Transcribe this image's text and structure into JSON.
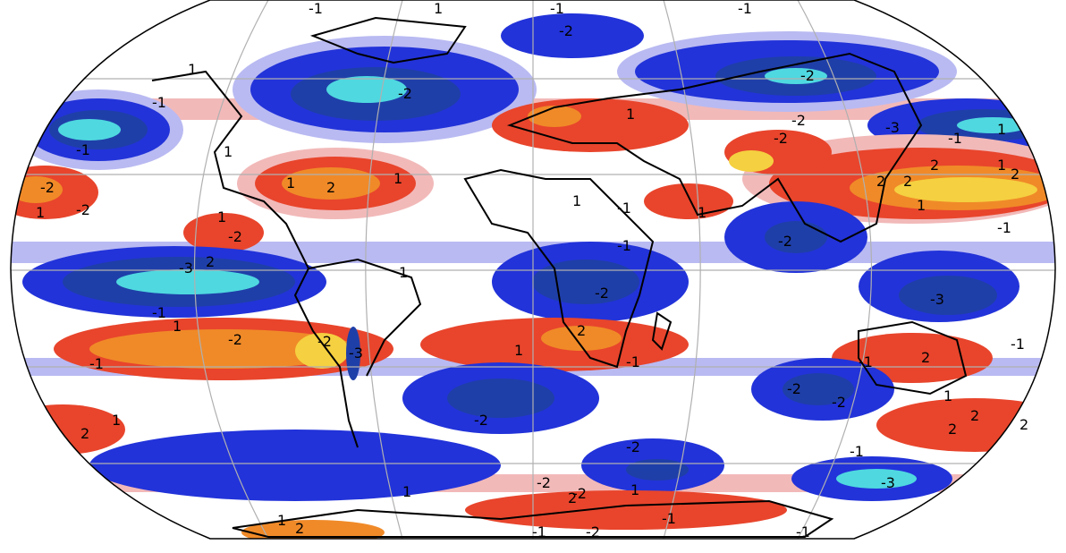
{
  "map": {
    "projection": "robinson",
    "colors": {
      "ocean_background": "#ffffff",
      "strong_neg": "#4fd8e0",
      "mid_neg": "#1f3fa8",
      "neg": "#2233d9",
      "weak_neg": "#b9baf2",
      "weak_pos": "#f2b9b9",
      "pos": "#e8452c",
      "mid_pos": "#f08a28",
      "strong_pos": "#f5d040",
      "coastline": "#000000",
      "gridline": "#b0b0b0"
    },
    "contour_labels": [
      "-1",
      "1",
      "-1",
      "-1",
      "1",
      "1",
      "-1",
      "-1",
      "1",
      "2",
      "1",
      "-2",
      "-2",
      "-2",
      "1",
      "1",
      "-2",
      "1",
      "-1",
      "-3",
      "2",
      "-2",
      "-1",
      "1",
      "-2",
      "-3",
      "1",
      "-2",
      "2",
      "-3",
      "1",
      "-1",
      "2",
      "1",
      "1",
      "1",
      "2",
      "-2",
      "1",
      "2",
      "-1",
      "-3",
      "-2",
      "2",
      "-2",
      "2",
      "-1",
      "2",
      "1",
      "-1",
      "2",
      "-2",
      "1",
      "-2",
      "-2",
      "1",
      "2",
      "-1",
      "-1",
      "-3",
      "-2",
      "1",
      "2",
      "-2",
      "-1",
      "-2",
      "-1",
      "1",
      "-2",
      "-2",
      "-1",
      "2",
      "1",
      "2",
      "-1",
      "-2",
      "-1"
    ]
  }
}
